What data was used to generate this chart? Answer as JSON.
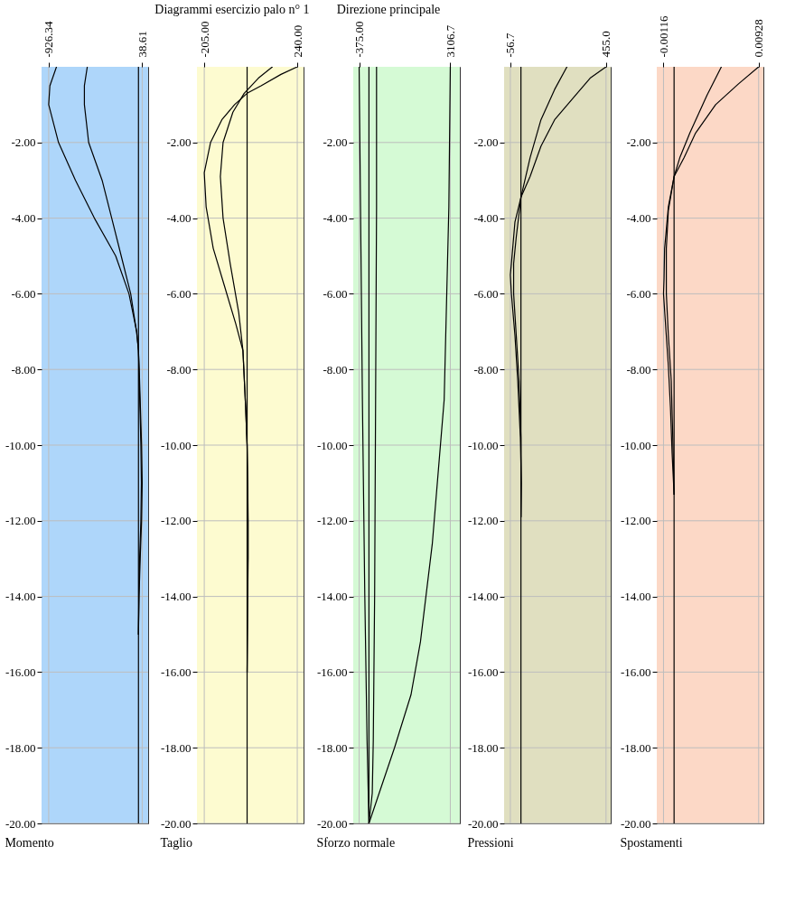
{
  "chart_data": [
    {
      "type": "line",
      "xlabel": "Momento",
      "xlim": [
        -1000,
        100
      ],
      "xticks": [
        -926.34,
        38.61
      ],
      "ylim": [
        -20,
        0
      ],
      "yticks": [
        {
          "value": -2,
          "label": "-2.00"
        },
        {
          "value": -4,
          "label": "-4.00"
        },
        {
          "value": -6,
          "label": "-6.00"
        },
        {
          "value": -8,
          "label": "-8.00"
        },
        {
          "value": -10,
          "label": "-10.00"
        },
        {
          "value": -12,
          "label": "-12.00"
        },
        {
          "value": -14,
          "label": "-14.00"
        },
        {
          "value": -16,
          "label": "-16.00"
        },
        {
          "value": -18,
          "label": "-18.00"
        },
        {
          "value": -20,
          "label": "-20.00"
        }
      ],
      "grid": true,
      "bands": [
        {
          "axis": "x",
          "from": -1000,
          "to": 100,
          "color": "#aed6fa"
        }
      ],
      "ref_lines": [
        {
          "axis": "x",
          "value": 0,
          "color": "#000000"
        }
      ],
      "series": [
        {
          "color": "#000000",
          "x": [
            -846,
            -914,
            -926.34,
            -825,
            -650,
            -455,
            -235,
            -98,
            -18,
            0,
            8,
            20,
            32,
            38.61,
            32,
            18,
            6,
            0
          ],
          "values": [
            0,
            -0.5,
            -1,
            -2,
            -3,
            -4,
            -5,
            -6,
            -7,
            -7.5,
            -8,
            -9,
            -10,
            -11,
            -12,
            -13,
            -14,
            -15
          ]
        },
        {
          "color": "#000000",
          "x": [
            -528,
            -558,
            -558,
            -514,
            -375,
            -276,
            -178,
            -80,
            -20,
            0,
            5,
            15,
            25,
            30,
            25,
            12,
            4,
            0
          ],
          "values": [
            0,
            -0.5,
            -1,
            -2,
            -3,
            -4,
            -5,
            -6,
            -7,
            -7.5,
            -8,
            -9,
            -10,
            -11,
            -12,
            -13,
            -14,
            -15
          ]
        }
      ]
    },
    {
      "type": "line",
      "title": "Diagrammi esercizio palo n° 1",
      "xlabel": "Taglio",
      "xlim": [
        -240,
        270
      ],
      "xticks": [
        {
          "value": -205,
          "label": "-205.00"
        },
        {
          "value": 240,
          "label": "240.00"
        }
      ],
      "ylim": [
        -20,
        0
      ],
      "yticks": [
        {
          "value": -2,
          "label": "-2.00"
        },
        {
          "value": -4,
          "label": "-4.00"
        },
        {
          "value": -6,
          "label": "-6.00"
        },
        {
          "value": -8,
          "label": "-8.00"
        },
        {
          "value": -10,
          "label": "-10.00"
        },
        {
          "value": -12,
          "label": "-12.00"
        },
        {
          "value": -14,
          "label": "-14.00"
        },
        {
          "value": -16,
          "label": "-16.00"
        },
        {
          "value": -18,
          "label": "-18.00"
        },
        {
          "value": -20,
          "label": "-20.00"
        }
      ],
      "grid": true,
      "bands": [
        {
          "axis": "x",
          "from": -240,
          "to": 270,
          "color": "#fdfbd0"
        }
      ],
      "ref_lines": [
        {
          "axis": "x",
          "value": 0,
          "color": "#000000"
        }
      ],
      "series": [
        {
          "color": "#000000",
          "x": [
            240,
            162,
            67,
            0,
            -60,
            -121,
            -175,
            -205,
            -196,
            -162,
            -108,
            -54,
            -20,
            -7,
            0,
            3,
            5,
            5,
            3,
            0
          ],
          "values": [
            0,
            -0.2,
            -0.5,
            -0.7,
            -1,
            -1.4,
            -2,
            -2.8,
            -3.7,
            -4.8,
            -5.8,
            -6.8,
            -7.5,
            -9,
            -10,
            -11,
            -12,
            -13,
            -14,
            -16
          ]
        },
        {
          "color": "#000000",
          "x": [
            121,
            54,
            -14,
            -68,
            -115,
            -128,
            -115,
            -81,
            -40,
            -20,
            -7,
            0,
            2,
            4,
            4,
            2,
            0
          ],
          "values": [
            0,
            -0.3,
            -0.7,
            -1.2,
            -2,
            -2.9,
            -4,
            -5.2,
            -6.5,
            -7.5,
            -9,
            -10,
            -11,
            -12,
            -13,
            -14,
            -16
          ]
        }
      ]
    },
    {
      "type": "line",
      "title": "Direzione principale",
      "xlabel": "Sforzo normale",
      "xlim": [
        -600,
        3470
      ],
      "xticks": [
        {
          "value": -375,
          "label": "-375.00"
        },
        3106.7
      ],
      "ylim": [
        -20,
        0
      ],
      "yticks": [
        {
          "value": -2,
          "label": "-2.00"
        },
        {
          "value": -4,
          "label": "-4.00"
        },
        {
          "value": -6,
          "label": "-6.00"
        },
        {
          "value": -8,
          "label": "-8.00"
        },
        {
          "value": -10,
          "label": "-10.00"
        },
        {
          "value": -12,
          "label": "-12.00"
        },
        {
          "value": -14,
          "label": "-14.00"
        },
        {
          "value": -16,
          "label": "-16.00"
        },
        {
          "value": -18,
          "label": "-18.00"
        },
        {
          "value": -20,
          "label": "-20.00"
        }
      ],
      "grid": true,
      "bands": [
        {
          "axis": "x",
          "from": -600,
          "to": 3470,
          "color": "#d5fad5"
        }
      ],
      "ref_lines": [
        {
          "axis": "x",
          "value": 0,
          "color": "#000000"
        }
      ],
      "series": [
        {
          "color": "#000000",
          "x": [
            -375,
            -322,
            -250,
            -160,
            -72,
            0
          ],
          "values": [
            0,
            -3.7,
            -8.8,
            -13.9,
            -17.8,
            -20
          ]
        },
        {
          "color": "#000000",
          "x": [
            3106.7,
            3051,
            2872,
            2420,
            1966,
            1605,
            975,
            0
          ],
          "values": [
            0,
            -3.7,
            -8.8,
            -12.6,
            -15.2,
            -16.6,
            -18,
            -20
          ]
        },
        {
          "color": "#000000",
          "x": [
            290,
            290,
            254,
            218,
            166,
            127,
            0
          ],
          "values": [
            0,
            -3.7,
            -8.8,
            -13.9,
            -17.8,
            -19.2,
            -20
          ]
        }
      ]
    },
    {
      "type": "line",
      "xlabel": "Pressioni",
      "xlim": [
        -90,
        480
      ],
      "xticks": [
        -56.7,
        {
          "value": 455,
          "label": "455.0"
        }
      ],
      "ylim": [
        -20,
        0
      ],
      "yticks": [
        {
          "value": -2,
          "label": "-2.00"
        },
        {
          "value": -4,
          "label": "-4.00"
        },
        {
          "value": -6,
          "label": "-6.00"
        },
        {
          "value": -8,
          "label": "-8.00"
        },
        {
          "value": -10,
          "label": "-10.00"
        },
        {
          "value": -12,
          "label": "-12.00"
        },
        {
          "value": -14,
          "label": "-14.00"
        },
        {
          "value": -16,
          "label": "-16.00"
        },
        {
          "value": -18,
          "label": "-18.00"
        },
        {
          "value": -20,
          "label": "-20.00"
        }
      ],
      "grid": true,
      "bands": [
        {
          "axis": "x",
          "from": -90,
          "to": 480,
          "color": "#e0dfc0"
        }
      ],
      "ref_lines": [
        {
          "axis": "x",
          "value": 0,
          "color": "#000000"
        }
      ],
      "series": [
        {
          "color": "#000000",
          "x": [
            455,
            370,
            283,
            180,
            107,
            49,
            0,
            -32,
            -51,
            -56.7,
            -51,
            -32,
            -17,
            -3,
            2,
            0
          ],
          "values": [
            0,
            -0.3,
            -0.8,
            -1.4,
            -2.1,
            -2.9,
            -3.45,
            -4.1,
            -5.2,
            -5.5,
            -6,
            -7.1,
            -8.3,
            -9.8,
            -11,
            -11.9
          ]
        },
        {
          "color": "#000000",
          "x": [
            246,
            180,
            107,
            49,
            0,
            -25,
            -39,
            -39,
            -25,
            -10,
            0,
            1,
            0
          ],
          "values": [
            0,
            -0.6,
            -1.4,
            -2.4,
            -3.45,
            -4.5,
            -5.2,
            -6,
            -7.1,
            -8.3,
            -9.8,
            -11,
            -11.9
          ]
        }
      ]
    },
    {
      "type": "line",
      "xlabel": "Spostamenti",
      "xlim": [
        -0.0019,
        0.0098
      ],
      "xticks": [
        -0.00116,
        0.00928
      ],
      "ylim": [
        -20,
        0
      ],
      "yticks": [
        {
          "value": -2,
          "label": "-2.00"
        },
        {
          "value": -4,
          "label": "-4.00"
        },
        {
          "value": -6,
          "label": "-6.00"
        },
        {
          "value": -8,
          "label": "-8.00"
        },
        {
          "value": -10,
          "label": "-10.00"
        },
        {
          "value": -12,
          "label": "-12.00"
        },
        {
          "value": -14,
          "label": "-14.00"
        },
        {
          "value": -16,
          "label": "-16.00"
        },
        {
          "value": -18,
          "label": "-18.00"
        },
        {
          "value": -20,
          "label": "-20.00"
        }
      ],
      "grid": true,
      "bands": [
        {
          "axis": "x",
          "from": -0.0019,
          "to": 0.0098,
          "color": "#fcd8c6"
        }
      ],
      "ref_lines": [
        {
          "axis": "x",
          "value": 0,
          "color": "#000000"
        }
      ],
      "series": [
        {
          "color": "#000000",
          "x": [
            0.00928,
            0.00707,
            0.00456,
            0.00236,
            0.0011,
            0,
            -0.00063,
            -0.00104,
            -0.0011,
            -0.00116,
            -0.00094,
            -0.00063,
            -0.0004,
            -0.00022,
            0
          ],
          "values": [
            0,
            -0.45,
            -1,
            -1.75,
            -2.4,
            -2.9,
            -3.7,
            -4.8,
            -5.6,
            -6,
            -6.8,
            -7.9,
            -9,
            -10.2,
            -11.3
          ]
        },
        {
          "color": "#000000",
          "x": [
            0.00519,
            0.00361,
            0.00173,
            0.00063,
            0,
            -0.00063,
            -0.00085,
            -0.00085,
            -0.00063,
            -0.00031,
            -0.00014,
            0
          ],
          "values": [
            0,
            -0.75,
            -1.75,
            -2.4,
            -2.9,
            -3.8,
            -4.8,
            -6,
            -7.1,
            -8.3,
            -9.8,
            -11.3
          ]
        }
      ]
    }
  ]
}
